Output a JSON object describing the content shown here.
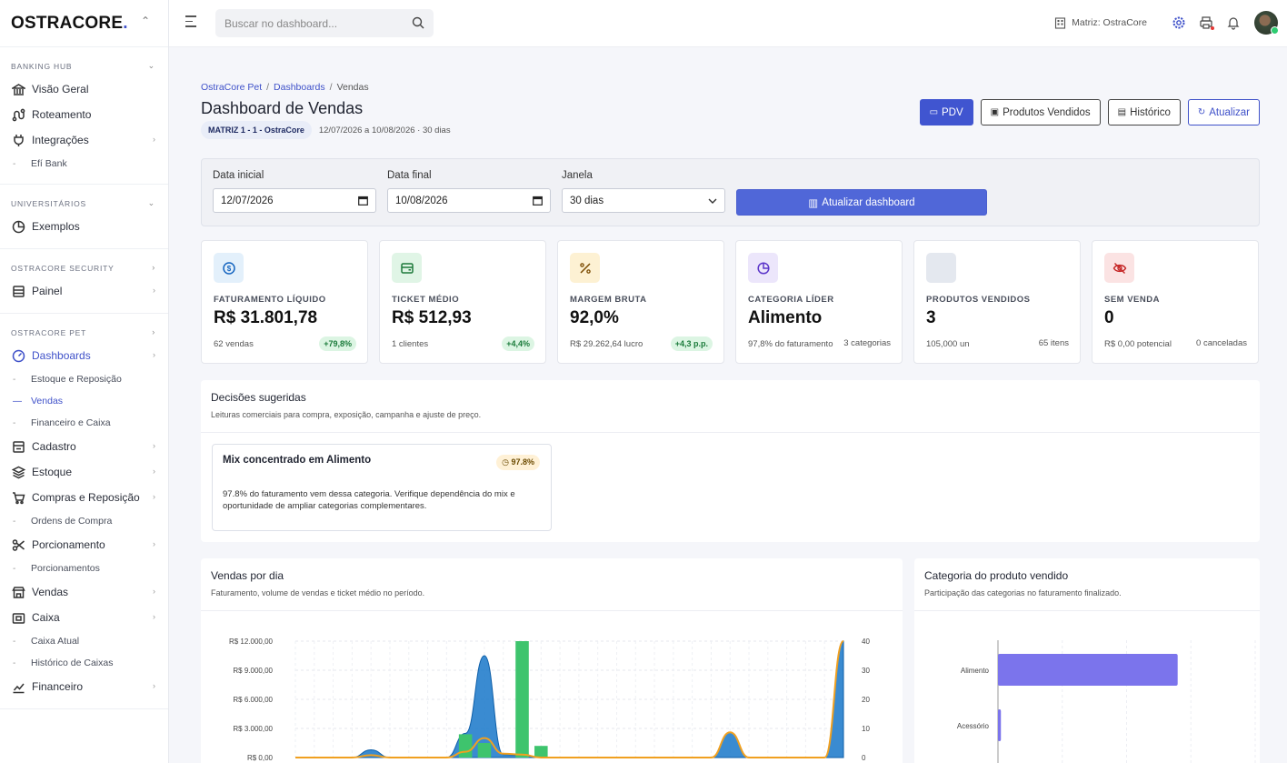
{
  "sidebar": {
    "brand": "OSTRACORE",
    "brand_dot": ".",
    "sections": [
      {
        "title": "BANKING HUB",
        "items": [
          {
            "label": "Visão Geral",
            "icon": "bank-icon"
          },
          {
            "label": "Roteamento",
            "icon": "route-icon"
          },
          {
            "label": "Integrações",
            "icon": "plug-icon",
            "arrow": true
          },
          {
            "label": "Efí Bank",
            "sub": true
          }
        ]
      },
      {
        "title": "UNIVERSITÁRIOS",
        "items": [
          {
            "label": "Exemplos",
            "icon": "pie-icon"
          }
        ]
      },
      {
        "title": "OSTRACORE SECURITY",
        "items": [
          {
            "label": "Painel",
            "icon": "panel-icon",
            "arrow": true
          }
        ]
      },
      {
        "title": "OSTRACORE PET",
        "items": [
          {
            "label": "Dashboards",
            "icon": "gauge-icon",
            "arrow": true,
            "active": true
          },
          {
            "label": "Estoque e Reposição",
            "sub": true
          },
          {
            "label": "Vendas",
            "sub": true,
            "active": true
          },
          {
            "label": "Financeiro e Caixa",
            "sub": true
          },
          {
            "label": "Cadastro",
            "icon": "form-icon",
            "arrow": true
          },
          {
            "label": "Estoque",
            "icon": "layers-icon",
            "arrow": true
          },
          {
            "label": "Compras e Reposição",
            "icon": "cart-icon",
            "arrow": true
          },
          {
            "label": "Ordens de Compra",
            "sub": true
          },
          {
            "label": "Porcionamento",
            "icon": "scissors-icon",
            "arrow": true
          },
          {
            "label": "Porcionamentos",
            "sub": true
          },
          {
            "label": "Vendas",
            "icon": "store-icon",
            "arrow": true
          },
          {
            "label": "Caixa",
            "icon": "cashbox-icon",
            "arrow": true
          },
          {
            "label": "Caixa Atual",
            "sub": true
          },
          {
            "label": "Histórico de Caixas",
            "sub": true
          },
          {
            "label": "Financeiro",
            "icon": "trend-icon",
            "arrow": true
          }
        ]
      }
    ]
  },
  "topbar": {
    "search_placeholder": "Buscar no dashboard...",
    "company": "Matriz: OstraCore"
  },
  "breadcrumb": {
    "a": "OstraCore Pet",
    "b": "Dashboards",
    "c": "Vendas"
  },
  "header": {
    "title": "Dashboard de Vendas",
    "badge": "MATRIZ 1 - 1 - OstraCore",
    "period": "12/07/2026 a 10/08/2026 · 30 dias"
  },
  "actions": {
    "pdv": "PDV",
    "produtos": "Produtos Vendidos",
    "historico": "Histórico",
    "atualizar": "Atualizar"
  },
  "filters": {
    "start_label": "Data inicial",
    "start_value": "12/07/2026",
    "end_label": "Data final",
    "end_value": "10/08/2026",
    "window_label": "Janela",
    "window_value": "30 dias",
    "submit": "Atualizar dashboard"
  },
  "kpis": [
    {
      "label": "FATURAMENTO LÍQUIDO",
      "value": "R$ 31.801,78",
      "sub": "62 vendas",
      "delta": "+79,8%",
      "icon": "dollar-icon",
      "bg": "#e3f0fb",
      "fg": "#1565c0"
    },
    {
      "label": "TICKET MÉDIO",
      "value": "R$ 512,93",
      "sub": "1 clientes",
      "delta": "+4,4%",
      "icon": "wallet-icon",
      "bg": "#e0f5e6",
      "fg": "#1e7a3b"
    },
    {
      "label": "MARGEM BRUTA",
      "value": "92,0%",
      "sub": "R$ 29.262,64 lucro",
      "delta": "+4,3 p.p.",
      "icon": "percent-icon",
      "bg": "#fdf1d3",
      "fg": "#7a4a00"
    },
    {
      "label": "CATEGORIA LÍDER",
      "value": "Alimento",
      "sub": "97,8% do faturamento",
      "right": "3 categorias",
      "icon": "pie-icon",
      "bg": "#ece6fb",
      "fg": "#5b35c9"
    },
    {
      "label": "PRODUTOS VENDIDOS",
      "value": "3",
      "sub": "105,000 un",
      "right": "65 itens",
      "icon": "box-icon",
      "bg": "#e4e8ef",
      "fg": "#6b7280"
    },
    {
      "label": "SEM VENDA",
      "value": "0",
      "sub": "R$ 0,00 potencial",
      "right": "0 canceladas",
      "icon": "eye-off-icon",
      "bg": "#fbe3e3",
      "fg": "#c62828"
    }
  ],
  "decisions": {
    "title": "Decisões sugeridas",
    "subtitle": "Leituras comerciais para compra, exposição, campanha e ajuste de preço.",
    "insight_title": "Mix concentrado em Alimento",
    "insight_badge": "97.8%",
    "insight_text": "97.8% do faturamento vem dessa categoria. Verifique dependência do mix e oportunidade de ampliar categorias complementares."
  },
  "sales_chart": {
    "title": "Vendas por dia",
    "subtitle": "Faturamento, volume de vendas e ticket médio no período."
  },
  "category_chart": {
    "title": "Categoria do produto vendido",
    "subtitle": "Participação das categorias no faturamento finalizado."
  },
  "chart_data": [
    {
      "type": "line",
      "title": "Vendas por dia",
      "y_left_ticks": [
        "R$ 12.000,00",
        "R$ 9.000,00",
        "R$ 6.000,00",
        "R$ 3.000,00",
        "R$ 0,00"
      ],
      "y_left_range": [
        0,
        12000
      ],
      "y_right_ticks": [
        "40",
        "30",
        "20",
        "10",
        "0"
      ],
      "y_right_range": [
        0,
        40
      ],
      "days": 30,
      "series": [
        {
          "kind": "area",
          "color": "#1877c9",
          "axis": "left",
          "values": [
            0,
            0,
            0,
            0,
            800,
            0,
            0,
            0,
            0,
            2500,
            10500,
            300,
            200,
            0,
            0,
            0,
            0,
            0,
            0,
            0,
            0,
            0,
            0,
            2600,
            0,
            0,
            0,
            0,
            0,
            12000
          ]
        },
        {
          "kind": "bar",
          "color": "#3ec46d",
          "axis": "right",
          "values": [
            0,
            0,
            0,
            0,
            0,
            0,
            0,
            0,
            0,
            8,
            5,
            0,
            40,
            4,
            0,
            0,
            0,
            0,
            0,
            0,
            0,
            0,
            0,
            0,
            0,
            0,
            0,
            0,
            0,
            0
          ]
        },
        {
          "kind": "line",
          "color": "#f0a020",
          "axis": "left",
          "values": [
            0,
            0,
            0,
            0,
            250,
            0,
            0,
            0,
            0,
            600,
            2000,
            400,
            300,
            0,
            0,
            0,
            0,
            0,
            0,
            0,
            0,
            0,
            0,
            2600,
            0,
            0,
            0,
            0,
            0,
            12000
          ]
        }
      ]
    },
    {
      "type": "bar",
      "orientation": "horizontal",
      "title": "Categoria do produto vendido",
      "categories": [
        "Alimento",
        "Acessório"
      ],
      "values": [
        97.8,
        1.6
      ],
      "color": "#7b74ec"
    }
  ]
}
